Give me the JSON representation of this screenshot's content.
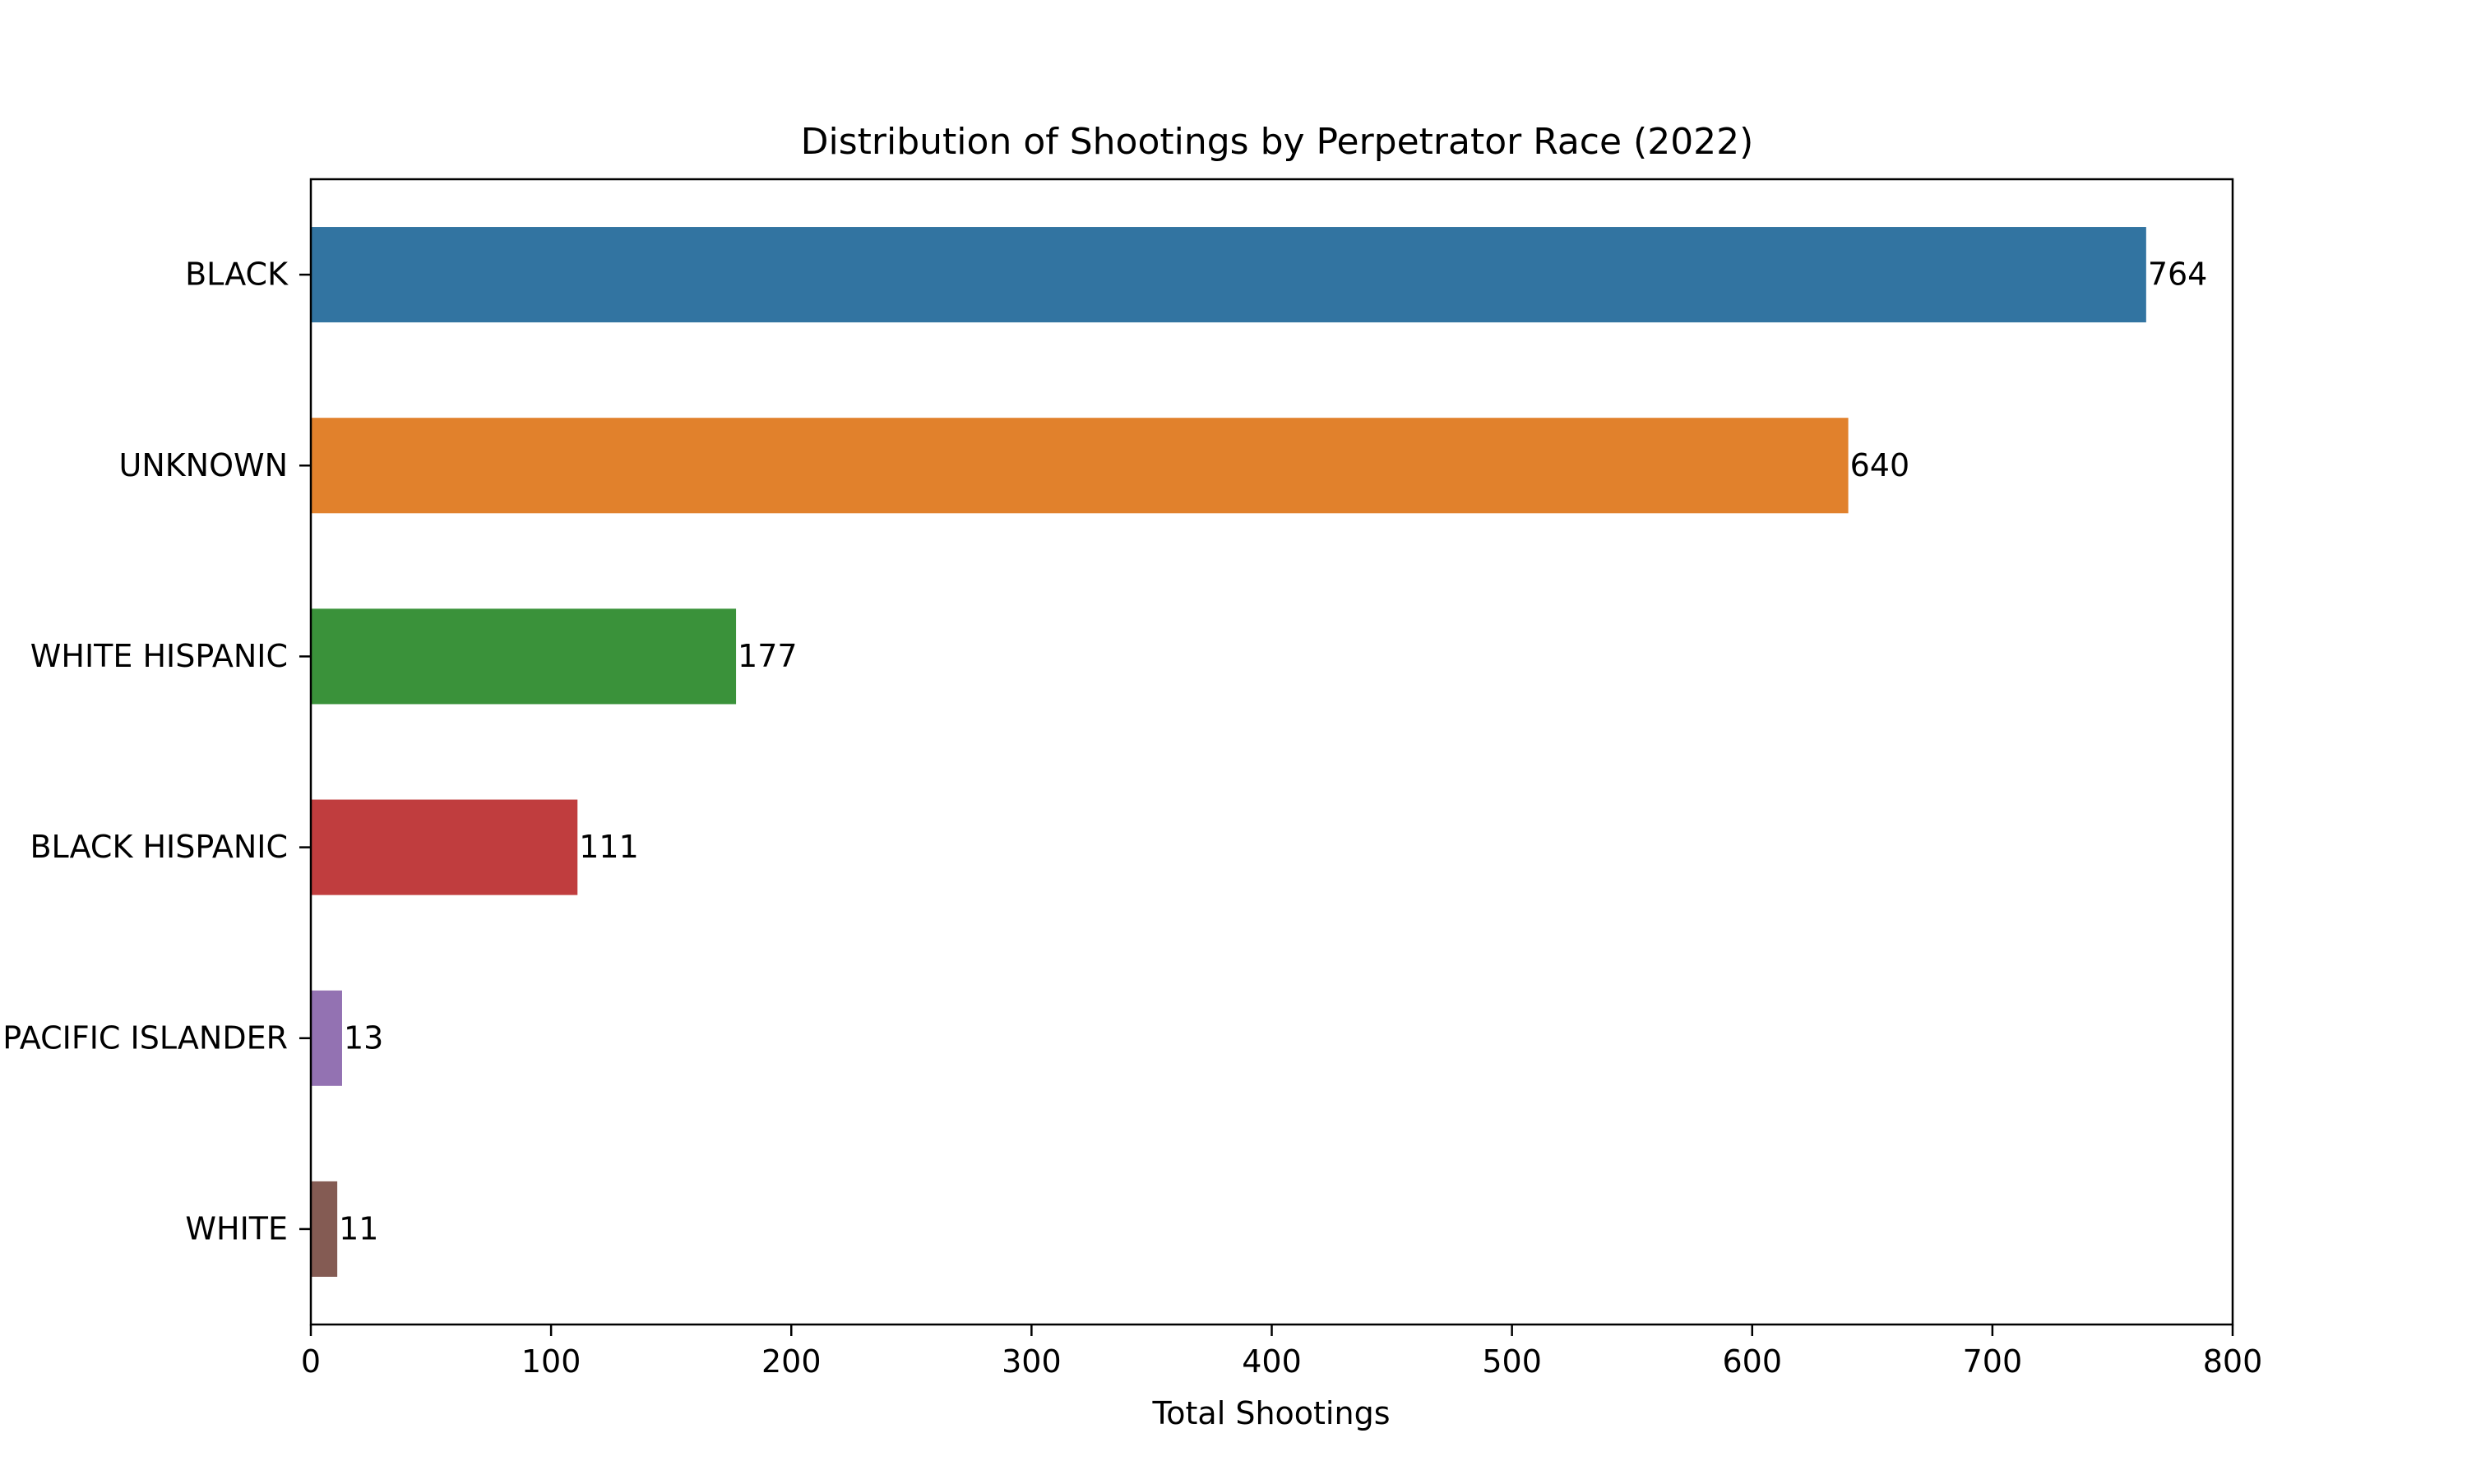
{
  "chart_data": {
    "type": "bar",
    "orientation": "horizontal",
    "title": "Distribution of Shootings by Perpetrator Race (2022)",
    "xlabel": "Total Shootings",
    "ylabel": "",
    "xlim": [
      0,
      800
    ],
    "x_ticks": [
      0,
      100,
      200,
      300,
      400,
      500,
      600,
      700,
      800
    ],
    "categories": [
      "BLACK",
      "UNKNOWN",
      "WHITE HISPANIC",
      "BLACK HISPANIC",
      "PACIFIC ISLANDER",
      "WHITE"
    ],
    "values": [
      764,
      640,
      177,
      111,
      13,
      11
    ],
    "colors": [
      "#3274a1",
      "#e1812c",
      "#3a923a",
      "#c03d3e",
      "#9372b2",
      "#845b53"
    ],
    "grid": false,
    "legend": "none"
  }
}
